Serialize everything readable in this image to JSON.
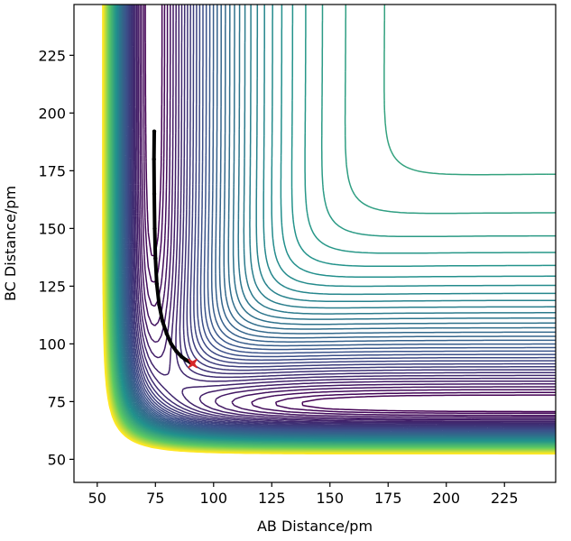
{
  "chart_data": {
    "type": "contour",
    "title": "",
    "xlabel": "AB Distance/pm",
    "ylabel": "BC Distance/pm",
    "xlim": [
      40,
      247
    ],
    "ylim": [
      40,
      247
    ],
    "x_ticks": [
      50,
      75,
      100,
      125,
      150,
      175,
      200,
      225
    ],
    "y_ticks": [
      50,
      75,
      100,
      125,
      150,
      175,
      200,
      225
    ],
    "x_tick_labels": [
      "50",
      "75",
      "100",
      "125",
      "150",
      "175",
      "200",
      "225"
    ],
    "y_tick_labels": [
      "50",
      "75",
      "100",
      "125",
      "150",
      "175",
      "200",
      "225"
    ],
    "grid": false,
    "colormap": "viridis",
    "colormap_stops": [
      "#440154",
      "#3b528b",
      "#21918c",
      "#5ec962",
      "#fde725"
    ],
    "contour_levels": 60,
    "surface": {
      "description": "LEPS-type potential energy surface",
      "entrance_channel_bottom_x": 74,
      "exit_channel_bottom_y": 74,
      "saddle_point": [
        91,
        91
      ]
    },
    "trajectory": {
      "color": "#000000",
      "points": [
        [
          74.5,
          192
        ],
        [
          74.4,
          180
        ],
        [
          74.5,
          165
        ],
        [
          74.7,
          150
        ],
        [
          75.0,
          137
        ],
        [
          75.6,
          126
        ],
        [
          76.6,
          117
        ],
        [
          78.0,
          110
        ],
        [
          79.8,
          104.5
        ],
        [
          81.8,
          100
        ],
        [
          84.0,
          96.8
        ],
        [
          86.2,
          94.5
        ],
        [
          88.2,
          93.0
        ],
        [
          90.0,
          92.0
        ]
      ]
    },
    "marker": {
      "symbol": "x-star",
      "color": "#d62728",
      "x": 91,
      "y": 91.5
    }
  }
}
